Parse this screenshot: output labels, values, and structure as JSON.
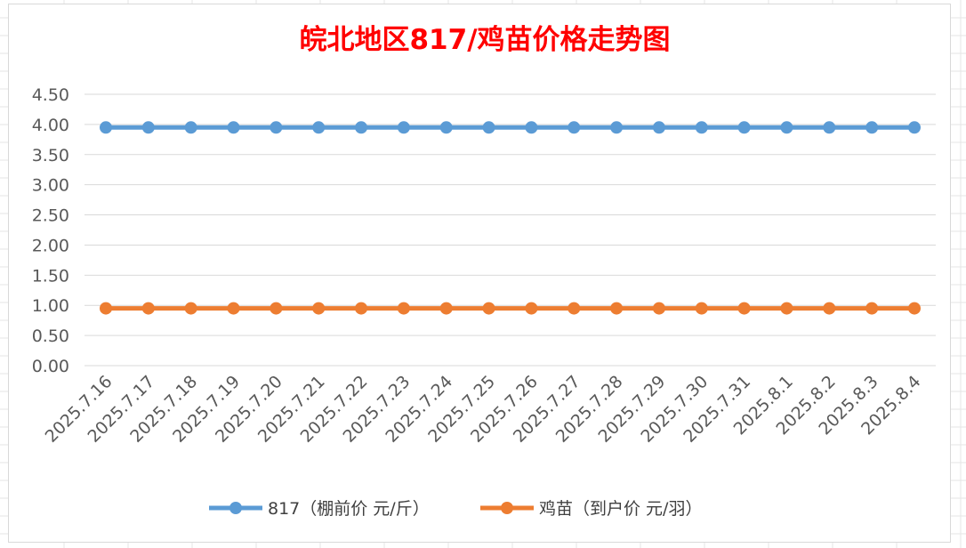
{
  "chart_data": {
    "type": "line",
    "title": "皖北地区817/鸡苗价格走势图",
    "categories": [
      "2025.7.16",
      "2025.7.17",
      "2025.7.18",
      "2025.7.19",
      "2025.7.20",
      "2025.7.21",
      "2025.7.22",
      "2025.7.23",
      "2025.7.24",
      "2025.7.25",
      "2025.7.26",
      "2025.7.27",
      "2025.7.28",
      "2025.7.29",
      "2025.7.30",
      "2025.7.31",
      "2025.8.1",
      "2025.8.2",
      "2025.8.3",
      "2025.8.4"
    ],
    "y_ticks": [
      "0.00",
      "0.50",
      "1.00",
      "1.50",
      "2.00",
      "2.50",
      "3.00",
      "3.50",
      "4.00",
      "4.50"
    ],
    "ylim": [
      0,
      4.5
    ],
    "grid": true,
    "legend_position": "bottom",
    "series": [
      {
        "name": "817（棚前价 元/斤）",
        "color": "#5b9bd5",
        "values": [
          3.95,
          3.95,
          3.95,
          3.95,
          3.95,
          3.95,
          3.95,
          3.95,
          3.95,
          3.95,
          3.95,
          3.95,
          3.95,
          3.95,
          3.95,
          3.95,
          3.95,
          3.95,
          3.95,
          3.95
        ]
      },
      {
        "name": "鸡苗（到户价 元/羽）",
        "color": "#ed7d31",
        "values": [
          0.95,
          0.95,
          0.95,
          0.95,
          0.95,
          0.95,
          0.95,
          0.95,
          0.95,
          0.95,
          0.95,
          0.95,
          0.95,
          0.95,
          0.95,
          0.95,
          0.95,
          0.95,
          0.95,
          0.95
        ]
      }
    ]
  }
}
